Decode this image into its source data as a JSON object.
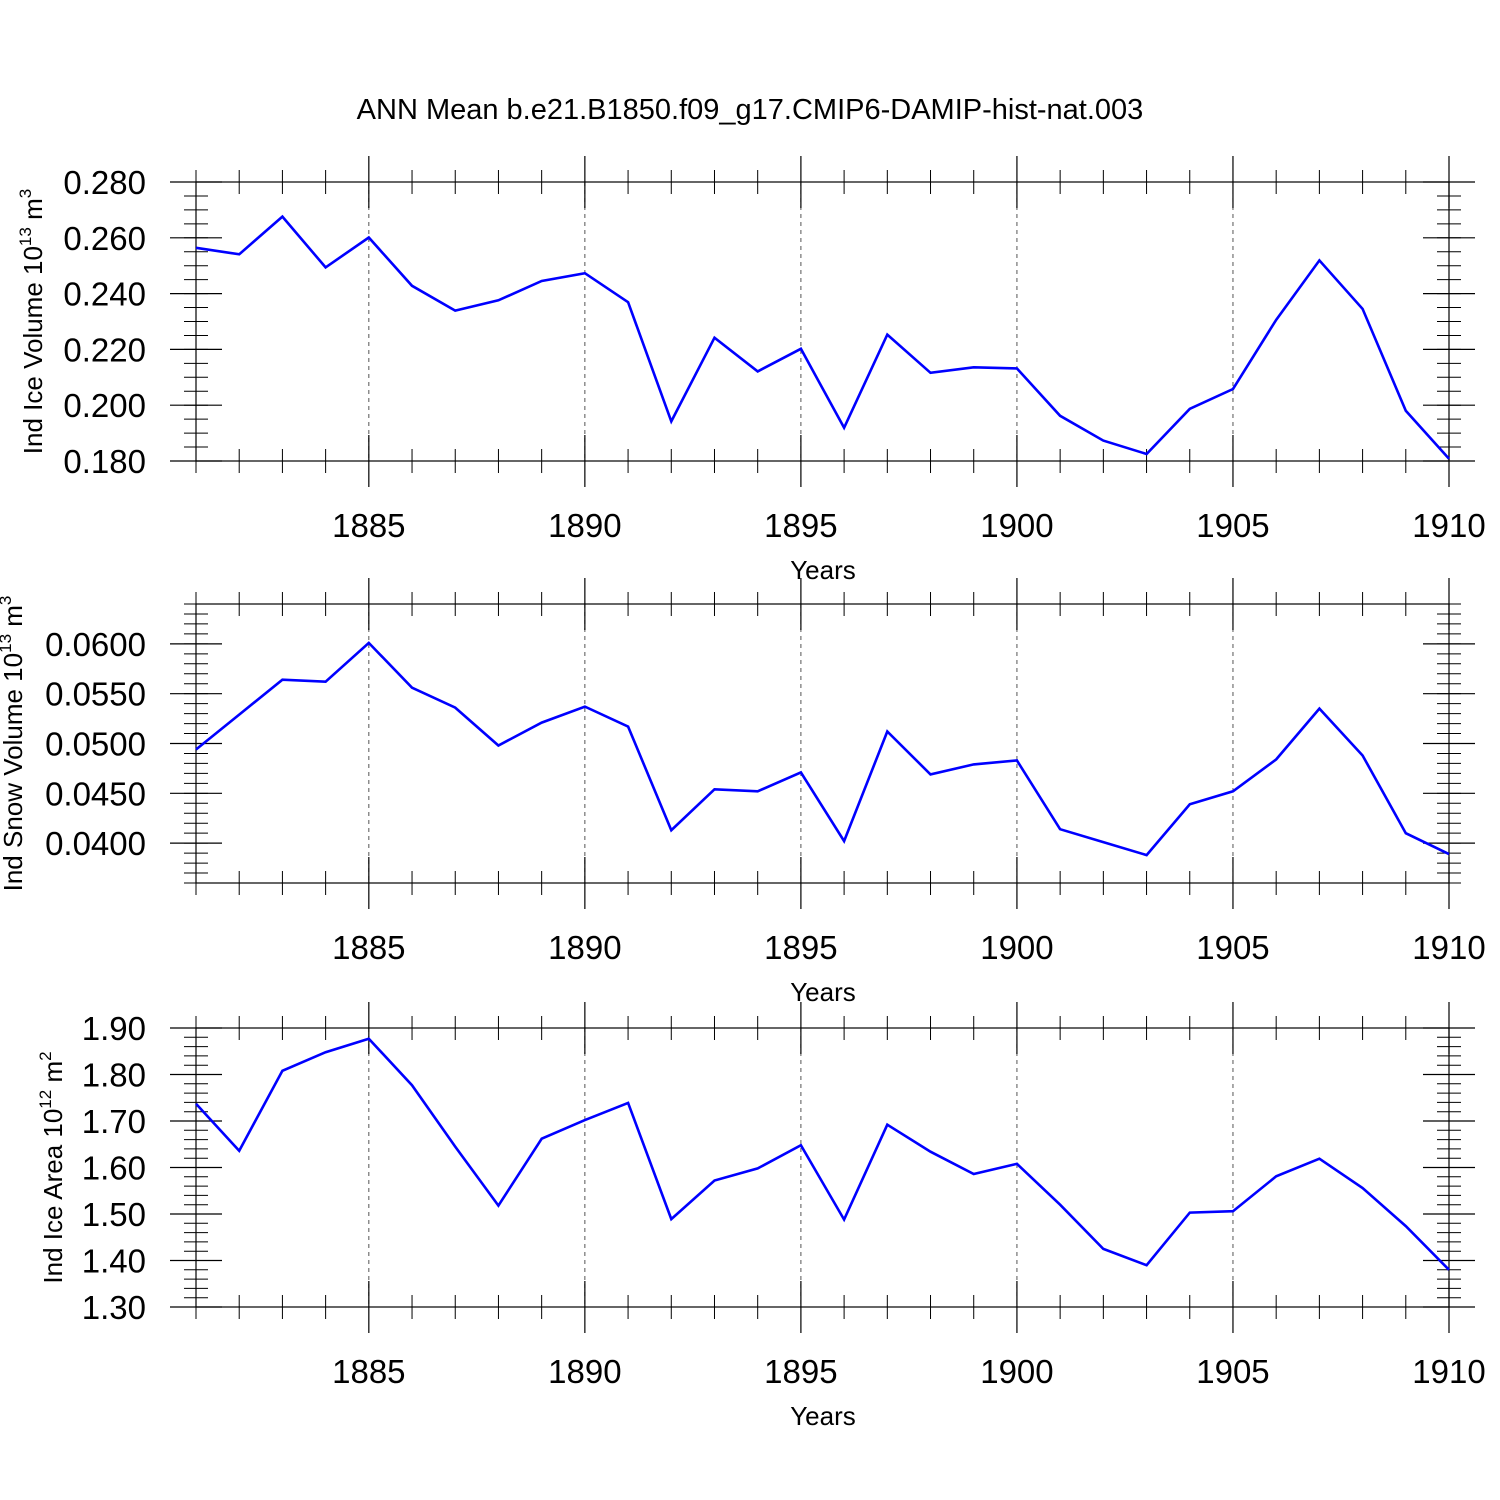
{
  "chart_data": {
    "type": "line",
    "title": "ANN Mean b.e21.B1850.f09_g17.CMIP6-DAMIP-hist-nat.003",
    "line_color": "#0000ff",
    "grid": "vertical dashed at major x ticks",
    "panels": [
      {
        "ylabel_main": "Ind Ice Volume 10",
        "ylabel_exp": "13",
        "ylabel_unit": " m",
        "ylabel_unit_exp": "3",
        "xlabel": "Years",
        "xlim": [
          1881,
          1910
        ],
        "ylim": [
          0.18,
          0.2815
        ],
        "xticks": [
          "1885",
          "1890",
          "1895",
          "1900",
          "1905",
          "1910"
        ],
        "yticks": [
          "0.280",
          "0.260",
          "0.240",
          "0.220",
          "0.200",
          "0.180"
        ],
        "x": [
          1881,
          1882,
          1883,
          1884,
          1885,
          1886,
          1887,
          1888,
          1889,
          1890,
          1891,
          1892,
          1893,
          1894,
          1895,
          1896,
          1897,
          1898,
          1899,
          1900,
          1901,
          1902,
          1903,
          1904,
          1905,
          1906,
          1907,
          1908,
          1909,
          1910
        ],
        "values": [
          0.2564,
          0.2541,
          0.2676,
          0.2494,
          0.2601,
          0.2428,
          0.2339,
          0.2376,
          0.2445,
          0.2473,
          0.2369,
          0.1942,
          0.2242,
          0.2121,
          0.2202,
          0.1919,
          0.2253,
          0.2116,
          0.2136,
          0.2132,
          0.1962,
          0.1873,
          0.1825,
          0.1987,
          0.2058,
          0.2306,
          0.2519,
          0.2345,
          0.198,
          0.1808
        ]
      },
      {
        "ylabel_main": "Ind Snow Volume 10",
        "ylabel_exp": "13",
        "ylabel_unit": " m",
        "ylabel_unit_exp": "3",
        "xlabel": "Years",
        "xlim": [
          1881,
          1910
        ],
        "ylim": [
          0.036,
          0.064
        ],
        "xticks": [
          "1885",
          "1890",
          "1895",
          "1900",
          "1905",
          "1910"
        ],
        "yticks": [
          "0.0600",
          "0.0550",
          "0.0500",
          "0.0450",
          "0.0400"
        ],
        "x": [
          1881,
          1882,
          1883,
          1884,
          1885,
          1886,
          1887,
          1888,
          1889,
          1890,
          1891,
          1892,
          1893,
          1894,
          1895,
          1896,
          1897,
          1898,
          1899,
          1900,
          1901,
          1902,
          1903,
          1904,
          1905,
          1906,
          1907,
          1908,
          1909,
          1910
        ],
        "values": [
          0.0494,
          0.0529,
          0.0564,
          0.0562,
          0.0601,
          0.0556,
          0.0536,
          0.0498,
          0.0521,
          0.0537,
          0.0517,
          0.0413,
          0.0454,
          0.0452,
          0.0471,
          0.0402,
          0.0512,
          0.0469,
          0.0479,
          0.0483,
          0.0414,
          0.0401,
          0.0388,
          0.0439,
          0.0452,
          0.0484,
          0.0535,
          0.0488,
          0.041,
          0.0389
        ]
      },
      {
        "ylabel_main": "Ind Ice Area 10",
        "ylabel_exp": "12",
        "ylabel_unit": " m",
        "ylabel_unit_exp": "2",
        "xlabel": "Years",
        "xlim": [
          1881,
          1910
        ],
        "ylim": [
          1.3,
          1.9
        ],
        "xticks": [
          "1885",
          "1890",
          "1895",
          "1900",
          "1905",
          "1910"
        ],
        "yticks": [
          "1.90",
          "1.80",
          "1.70",
          "1.60",
          "1.50",
          "1.40",
          "1.30"
        ],
        "x": [
          1881,
          1882,
          1883,
          1884,
          1885,
          1886,
          1887,
          1888,
          1889,
          1890,
          1891,
          1892,
          1893,
          1894,
          1895,
          1896,
          1897,
          1898,
          1899,
          1900,
          1901,
          1902,
          1903,
          1904,
          1905,
          1906,
          1907,
          1908,
          1909,
          1910
        ],
        "values": [
          1.737,
          1.636,
          1.808,
          1.848,
          1.877,
          1.777,
          1.645,
          1.518,
          1.662,
          1.702,
          1.739,
          1.489,
          1.572,
          1.598,
          1.648,
          1.488,
          1.692,
          1.634,
          1.586,
          1.608,
          1.52,
          1.425,
          1.39,
          1.503,
          1.506,
          1.581,
          1.619,
          1.556,
          1.474,
          1.38
        ]
      }
    ]
  }
}
